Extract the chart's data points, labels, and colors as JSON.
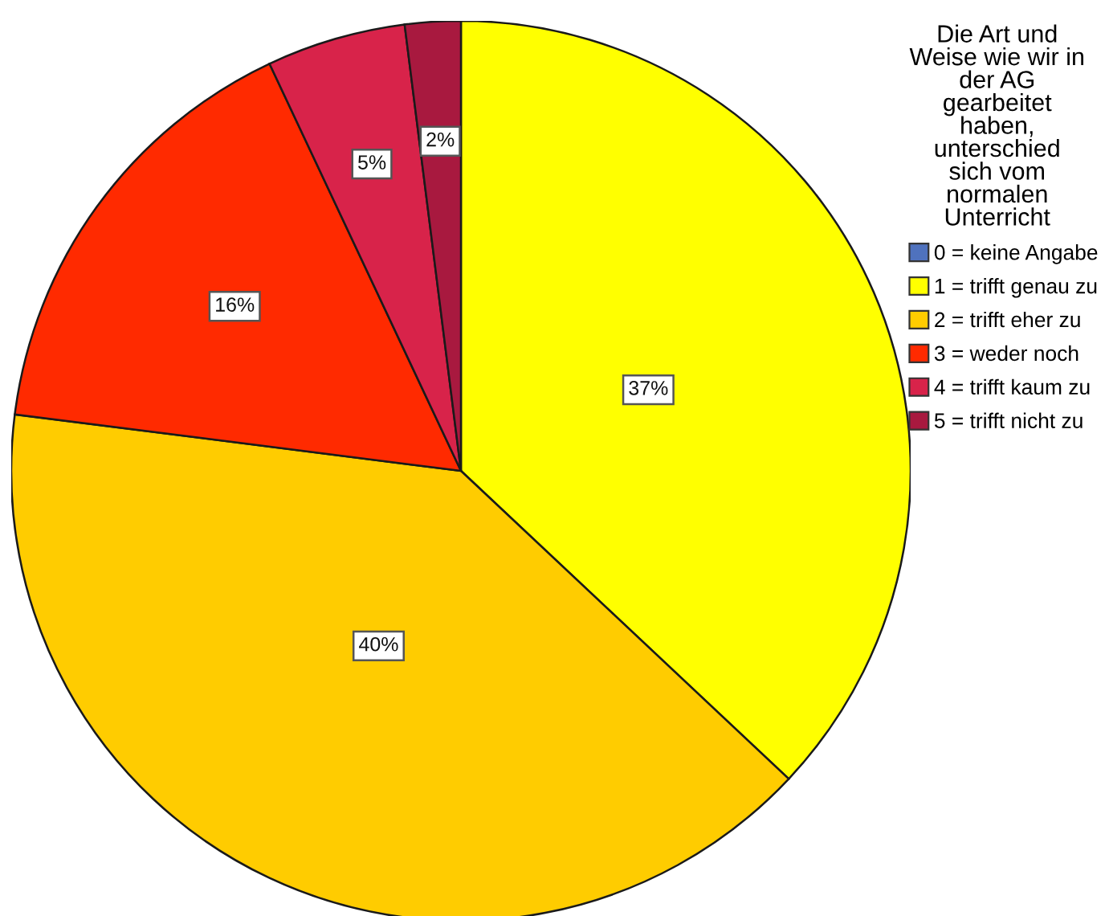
{
  "chart_data": {
    "type": "pie",
    "legend_title": "Die Art und\nWeise wie wir in\nder AG\ngearbeitet\nhaben,\nunterschied\nsich vom\nnormalen\nUnterricht",
    "categories": [
      "0 = keine Angabe",
      "1 = trifft genau zu",
      "2 = trifft eher zu",
      "3 = weder noch",
      "4 = trifft kaum zu",
      "5 = trifft nicht zu"
    ],
    "values": [
      0,
      37,
      40,
      16,
      5,
      2
    ],
    "colors": [
      "#4f72be",
      "#ffff00",
      "#ffcc00",
      "#ff2a00",
      "#d8234a",
      "#a8193f"
    ],
    "value_labels": [
      null,
      "37%",
      "40%",
      "16%",
      "5%",
      "2%"
    ],
    "legend": "top right"
  }
}
